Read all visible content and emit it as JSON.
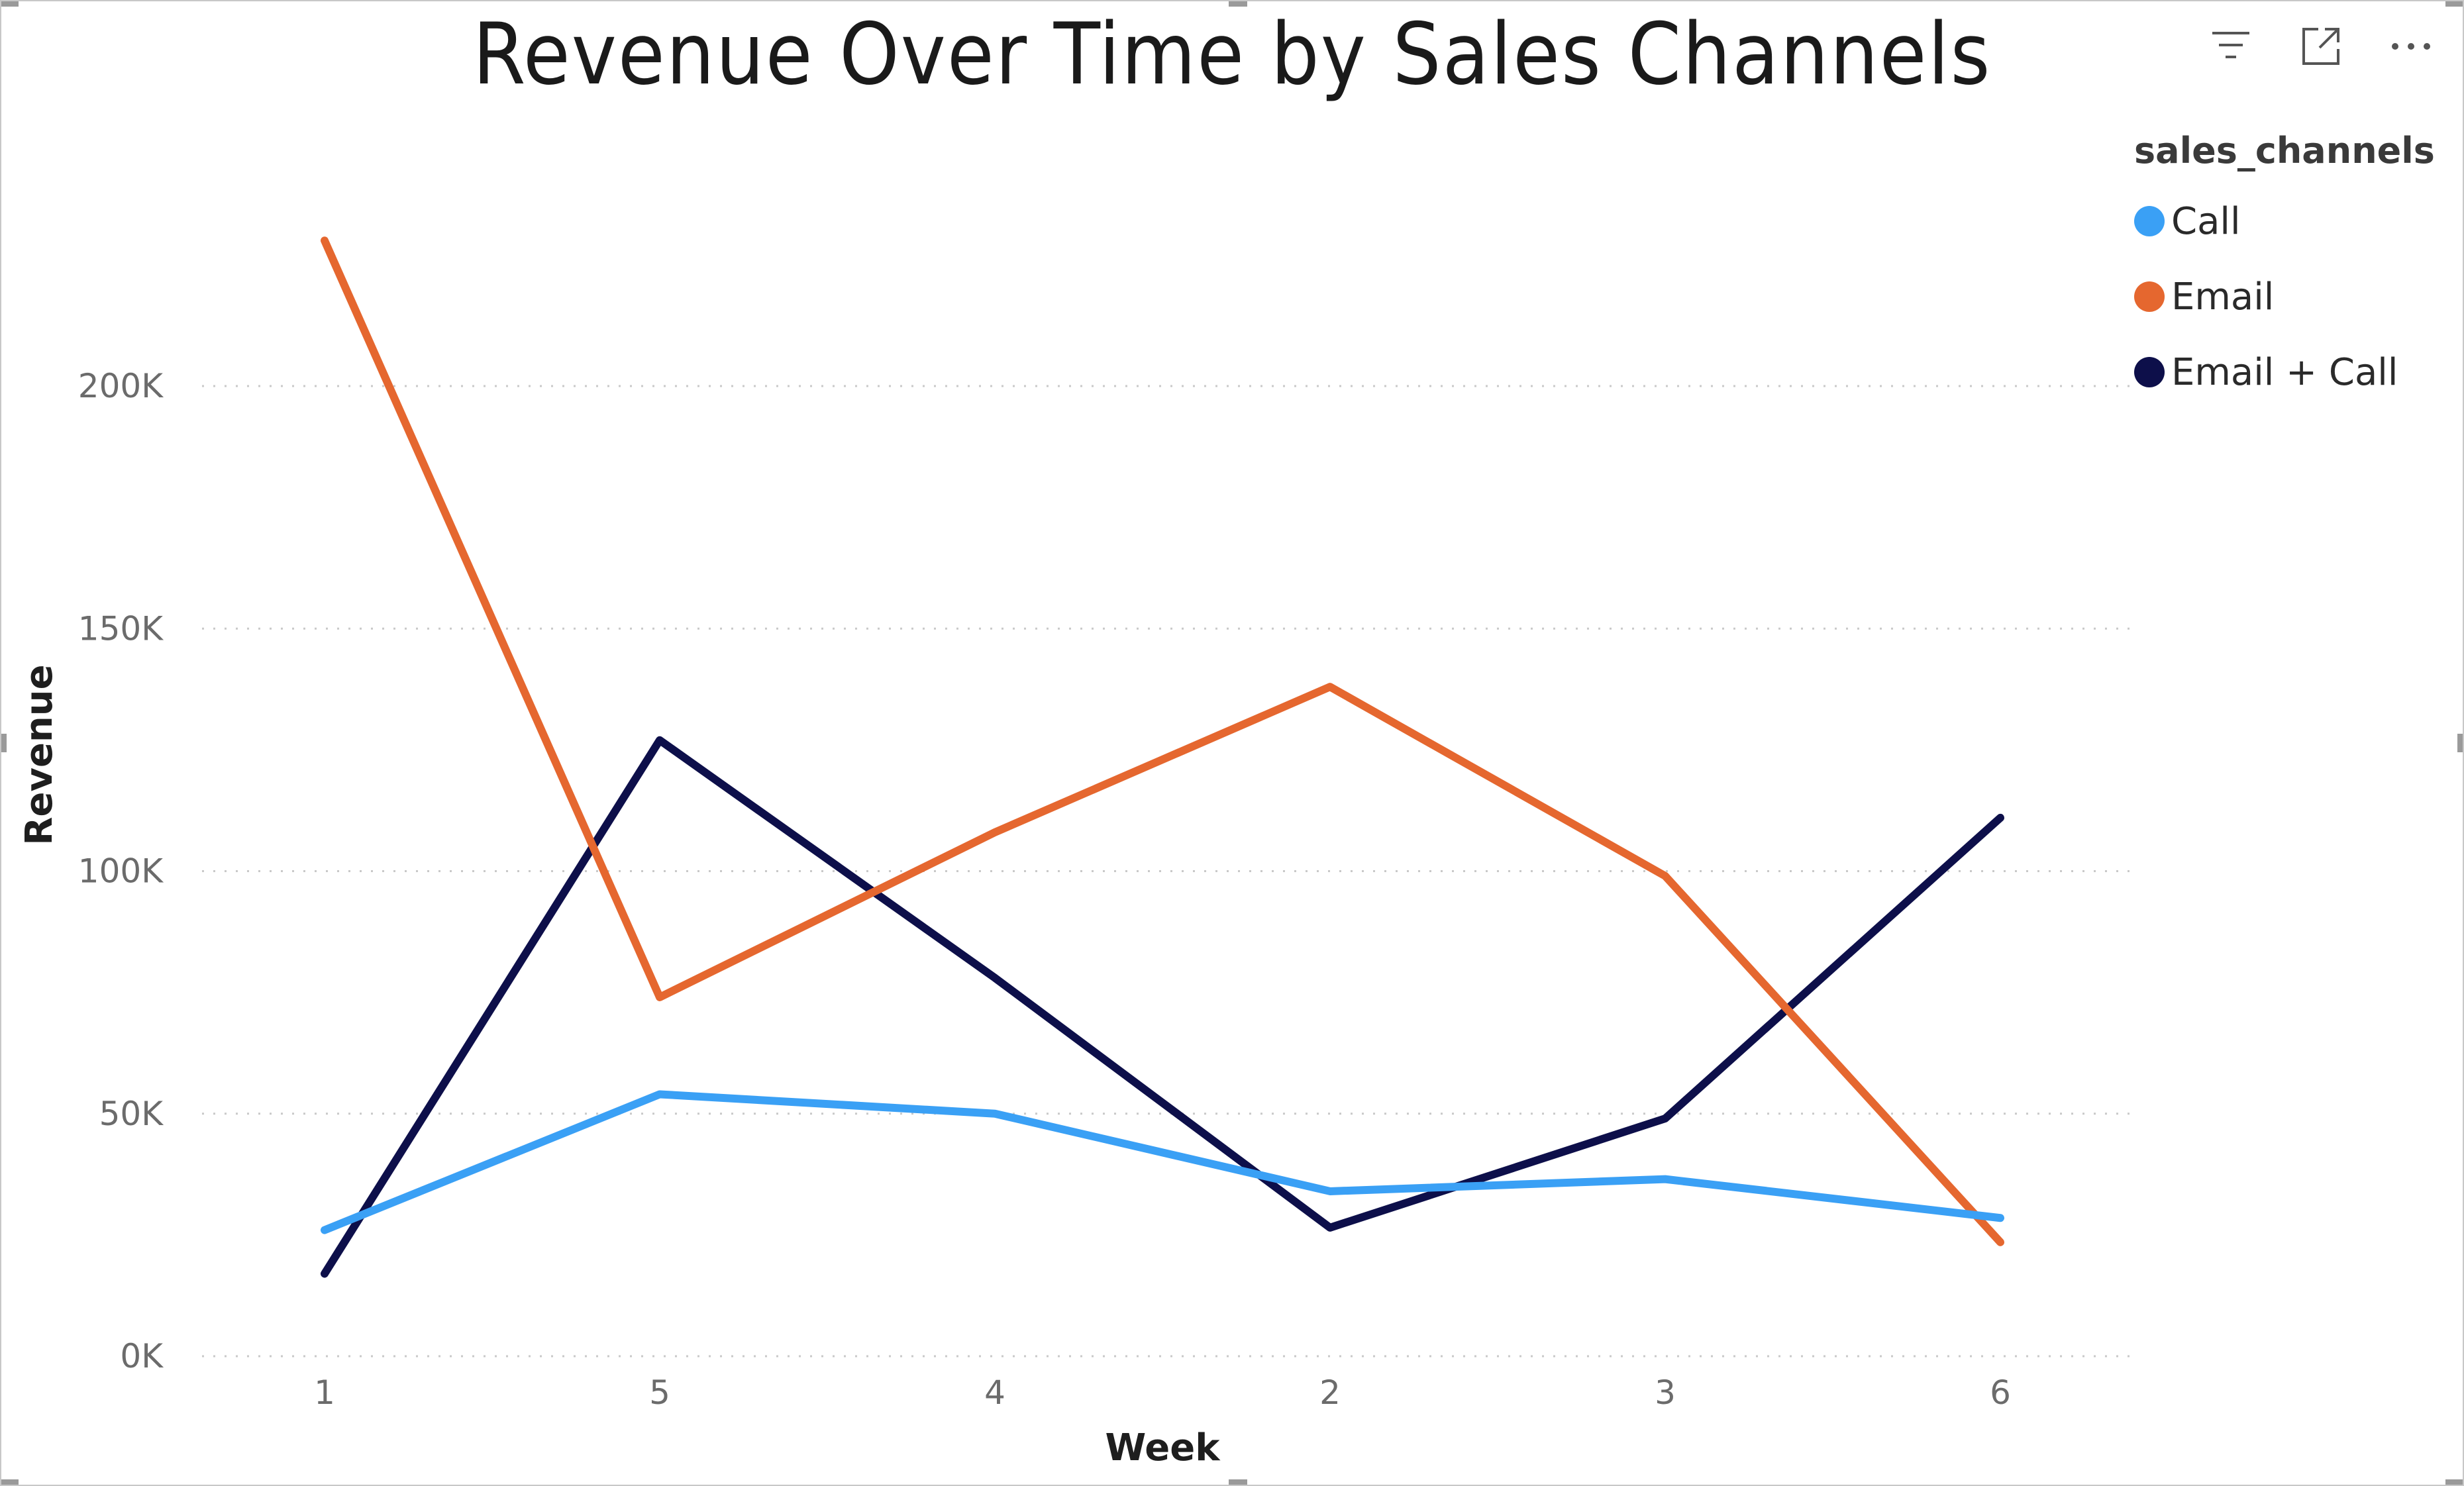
{
  "chart_data": {
    "type": "line",
    "title": "Revenue Over Time by Sales Channels",
    "xlabel": "Week",
    "ylabel": "Revenue",
    "categories": [
      "1",
      "5",
      "4",
      "2",
      "3",
      "6"
    ],
    "ylim": [
      0,
      240000
    ],
    "y_ticks": [
      0,
      50000,
      100000,
      150000,
      200000
    ],
    "y_tick_labels": [
      "0K",
      "50K",
      "100K",
      "150K",
      "200K"
    ],
    "grid": true,
    "legend_title": "sales_channels",
    "legend_position": "top-right",
    "series": [
      {
        "name": "Call",
        "color": "#3aa0f5",
        "values": [
          26000,
          54000,
          50000,
          34000,
          36500,
          28500
        ]
      },
      {
        "name": "Email",
        "color": "#e5672f",
        "values": [
          230000,
          74000,
          108000,
          138000,
          99000,
          23500
        ]
      },
      {
        "name": "Email + Call",
        "color": "#0d0f4a",
        "values": [
          17000,
          127000,
          78000,
          26500,
          49000,
          111000
        ]
      }
    ]
  },
  "header": {
    "icons": [
      "filter-icon",
      "focus-mode-icon",
      "more-options-icon"
    ]
  }
}
